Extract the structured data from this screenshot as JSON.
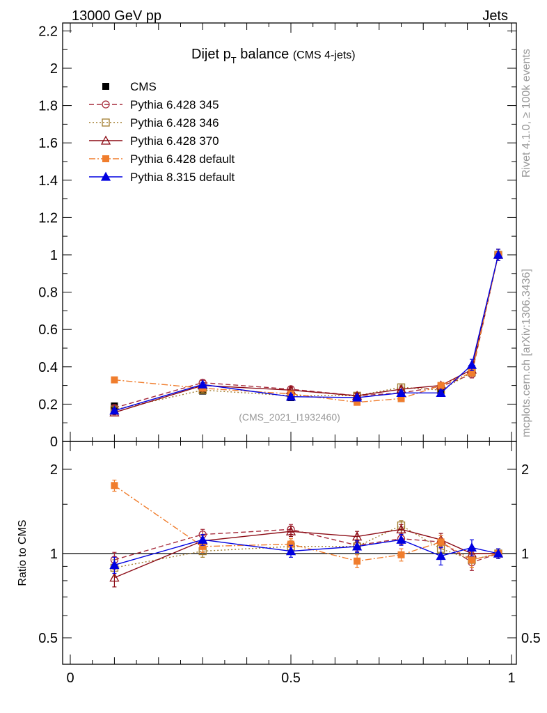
{
  "header": {
    "left": "13000 GeV pp",
    "right": "Jets"
  },
  "side_labels": {
    "rivet": "Rivet 4.1.0, ≥ 100k events",
    "mcplots": "mcplots.cern.ch [arXiv:1306.3436]"
  },
  "chart_data": [
    {
      "panel": "main",
      "type": "line",
      "title": "Dijet pT balance",
      "title_main": "Dijet p",
      "title_sub": "T",
      "title_rest": " balance",
      "title_note": "(CMS 4-jets)",
      "watermark": "(CMS_2021_I1932460)",
      "xlabel": "",
      "ylabel": "",
      "xlim": [
        0,
        1
      ],
      "ylim": [
        0,
        2.25
      ],
      "x_ticks": [
        0,
        0.5,
        1
      ],
      "x_tick_labels": [
        "0",
        "0.5",
        "1"
      ],
      "y_ticks": [
        0,
        0.2,
        0.4,
        0.6,
        0.8,
        1,
        1.2,
        1.4,
        1.6,
        1.8,
        2,
        2.2
      ],
      "y_tick_labels": [
        "0",
        "0.2",
        "0.4",
        "0.6",
        "0.8",
        "1",
        "1.2",
        "1.4",
        "1.6",
        "1.8",
        "2",
        "2.2"
      ],
      "legend_position": "top-left",
      "x": [
        0.1,
        0.3,
        0.5,
        0.65,
        0.75,
        0.84,
        0.91,
        0.97
      ],
      "series": [
        {
          "name": "CMS",
          "color": "#000000",
          "marker": "filled-square",
          "line": "none",
          "values": [
            0.19,
            0.27,
            0.235,
            0.23,
            0.23,
            0.265,
            0.39,
            1.0
          ],
          "errors": [
            0.01,
            0.01,
            0.01,
            0.01,
            0.01,
            0.015,
            0.02,
            0.02
          ]
        },
        {
          "name": "Pythia 6.428 345",
          "color": "#a52a3a",
          "marker": "open-circle",
          "line": "dashed",
          "values": [
            0.18,
            0.315,
            0.28,
            0.245,
            0.26,
            0.295,
            0.36,
            1.0
          ],
          "errors": [
            0.012,
            0.012,
            0.012,
            0.012,
            0.012,
            0.015,
            0.02,
            0.03
          ]
        },
        {
          "name": "Pythia 6.428 346",
          "color": "#a07b2c",
          "marker": "open-square",
          "line": "dotted",
          "values": [
            0.17,
            0.275,
            0.245,
            0.245,
            0.29,
            0.275,
            0.37,
            1.0
          ],
          "errors": [
            0.012,
            0.012,
            0.012,
            0.012,
            0.012,
            0.015,
            0.02,
            0.03
          ]
        },
        {
          "name": "Pythia 6.428 370",
          "color": "#8b0a14",
          "marker": "open-triangle",
          "line": "solid",
          "values": [
            0.155,
            0.3,
            0.275,
            0.245,
            0.28,
            0.3,
            0.385,
            1.0
          ],
          "errors": [
            0.012,
            0.012,
            0.012,
            0.012,
            0.012,
            0.015,
            0.02,
            0.03
          ]
        },
        {
          "name": "Pythia 6.428 default",
          "color": "#f07d2d",
          "marker": "filled-square",
          "line": "dashdot",
          "values": [
            0.33,
            0.285,
            0.255,
            0.21,
            0.23,
            0.3,
            0.37,
            1.0
          ],
          "errors": [
            0.015,
            0.012,
            0.012,
            0.012,
            0.012,
            0.015,
            0.02,
            0.03
          ]
        },
        {
          "name": "Pythia 8.315 default",
          "color": "#0000e0",
          "marker": "filled-triangle",
          "line": "solid",
          "values": [
            0.165,
            0.305,
            0.24,
            0.235,
            0.26,
            0.26,
            0.41,
            1.0
          ],
          "errors": [
            0.012,
            0.012,
            0.012,
            0.012,
            0.012,
            0.015,
            0.03,
            0.03
          ]
        }
      ]
    },
    {
      "panel": "ratio",
      "type": "line",
      "ylabel": "Ratio to CMS",
      "ylim": [
        0.4,
        2.3
      ],
      "y_scale": "log",
      "y_ticks": [
        0.5,
        1,
        2
      ],
      "y_tick_labels": [
        "0.5",
        "1",
        "2"
      ],
      "reference_line": 1,
      "x": [
        0.1,
        0.3,
        0.5,
        0.65,
        0.75,
        0.84,
        0.91,
        0.97
      ],
      "series": [
        {
          "name": "Pythia 6.428 345",
          "color": "#a52a3a",
          "marker": "open-circle",
          "line": "dashed",
          "values": [
            0.95,
            1.17,
            1.22,
            1.07,
            1.13,
            1.1,
            0.93,
            1.0
          ],
          "errors": [
            0.06,
            0.05,
            0.05,
            0.05,
            0.05,
            0.06,
            0.06,
            0.04
          ]
        },
        {
          "name": "Pythia 6.428 346",
          "color": "#a07b2c",
          "marker": "open-square",
          "line": "dotted",
          "values": [
            0.89,
            1.02,
            1.06,
            1.06,
            1.26,
            1.04,
            0.95,
            1.0
          ],
          "errors": [
            0.06,
            0.05,
            0.05,
            0.05,
            0.05,
            0.06,
            0.06,
            0.04
          ]
        },
        {
          "name": "Pythia 6.428 370",
          "color": "#8b0a14",
          "marker": "open-triangle",
          "line": "solid",
          "values": [
            0.82,
            1.11,
            1.2,
            1.15,
            1.22,
            1.12,
            1.0,
            1.0
          ],
          "errors": [
            0.06,
            0.05,
            0.05,
            0.05,
            0.05,
            0.06,
            0.06,
            0.04
          ]
        },
        {
          "name": "Pythia 6.428 default",
          "color": "#f07d2d",
          "marker": "filled-square",
          "line": "dashdot",
          "values": [
            1.75,
            1.06,
            1.08,
            0.94,
            0.99,
            1.1,
            0.95,
            1.0
          ],
          "errors": [
            0.08,
            0.05,
            0.05,
            0.05,
            0.05,
            0.06,
            0.06,
            0.04
          ]
        },
        {
          "name": "Pythia 8.315 default",
          "color": "#0000e0",
          "marker": "filled-triangle",
          "line": "solid",
          "values": [
            0.91,
            1.12,
            1.02,
            1.06,
            1.12,
            0.98,
            1.05,
            1.0
          ],
          "errors": [
            0.06,
            0.05,
            0.05,
            0.05,
            0.05,
            0.07,
            0.07,
            0.04
          ]
        }
      ]
    }
  ]
}
